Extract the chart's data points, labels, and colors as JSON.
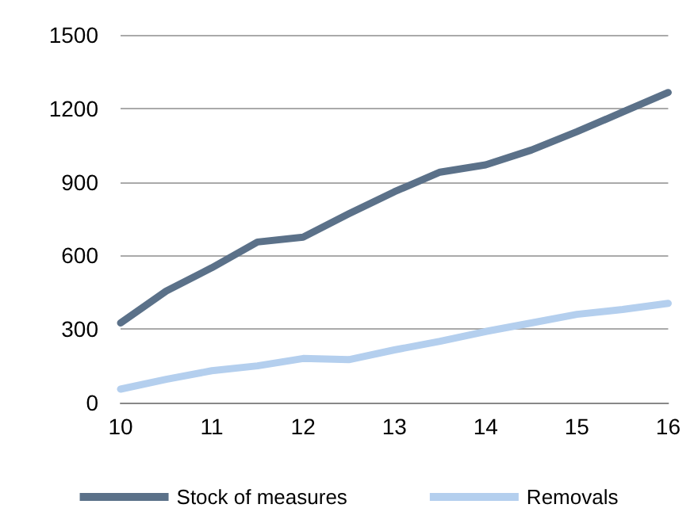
{
  "chart_data": {
    "type": "line",
    "x": [
      10,
      10.5,
      11,
      11.5,
      12,
      12.5,
      13,
      13.5,
      14,
      14.5,
      15,
      15.5,
      16
    ],
    "series": [
      {
        "name": "Stock of measures",
        "color": "#5b7189",
        "values": [
          325,
          455,
          550,
          655,
          675,
          770,
          860,
          940,
          970,
          1030,
          1105,
          1185,
          1265
        ]
      },
      {
        "name": "Removals",
        "color": "#b4cfee",
        "values": [
          55,
          95,
          130,
          150,
          180,
          175,
          215,
          250,
          290,
          325,
          360,
          380,
          405
        ]
      }
    ],
    "xlim": [
      10,
      16
    ],
    "xticks": [
      10,
      11,
      12,
      13,
      14,
      15,
      16
    ],
    "ylim": [
      0,
      1500
    ],
    "yticks": [
      0,
      300,
      600,
      900,
      1200,
      1500
    ],
    "grid": "y",
    "legend": "bottom",
    "marker": "none",
    "line_style": "solid"
  }
}
